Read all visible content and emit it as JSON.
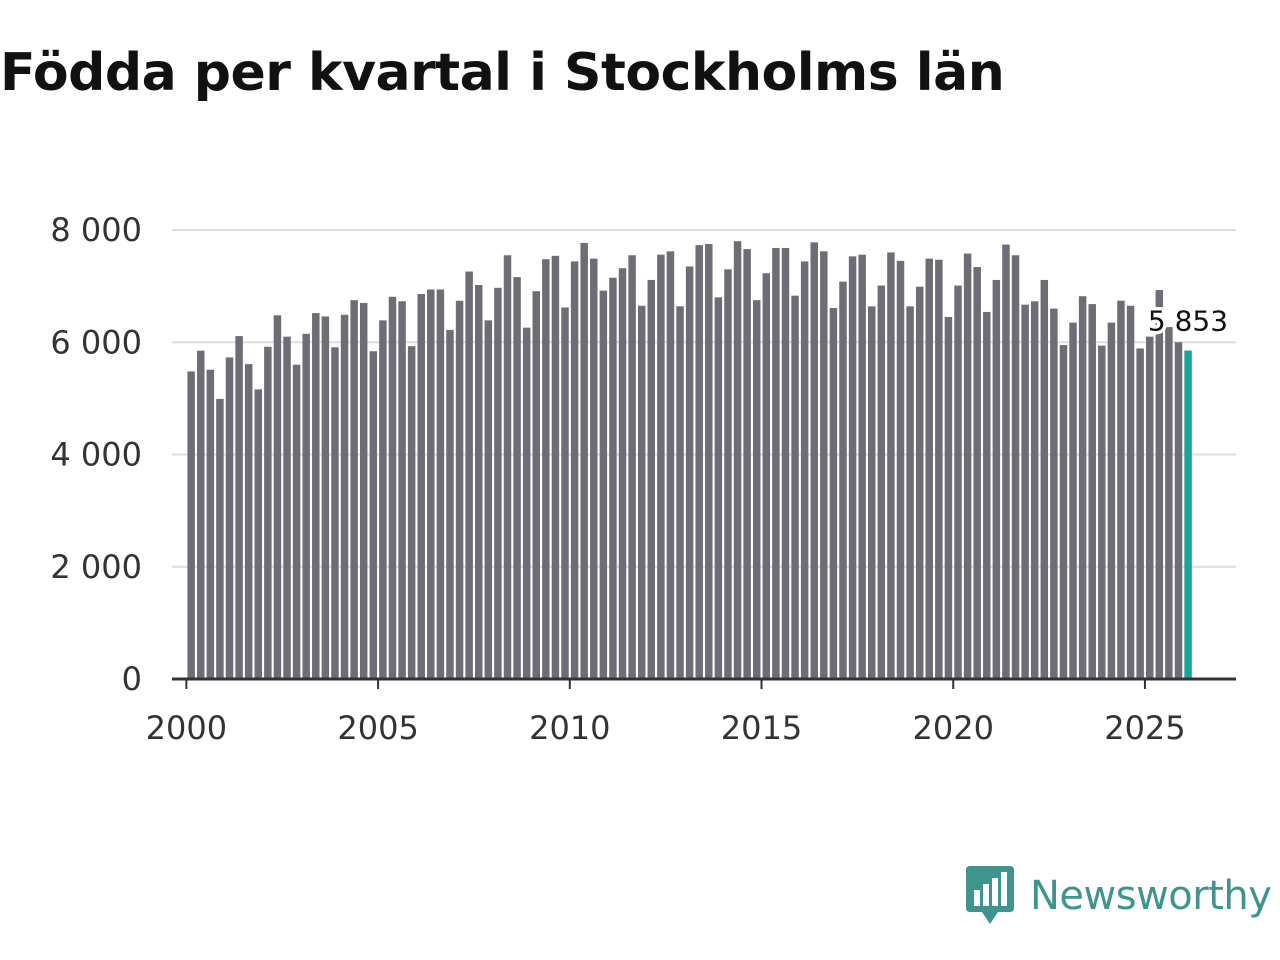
{
  "title": "Födda per kvartal i Stockholms län",
  "brand": {
    "name": "Newsworthy",
    "color": "#3f958e"
  },
  "colors": {
    "bar": "#6d6d75",
    "highlight": "#1aa397",
    "grid": "#dddddd",
    "axis": "#333333"
  },
  "chart_data": {
    "type": "bar",
    "title": "Födda per kvartal i Stockholms län",
    "xlabel": "",
    "ylabel": "",
    "ylim": [
      0,
      8000
    ],
    "y_ticks": [
      0,
      2000,
      4000,
      6000,
      8000
    ],
    "y_tick_labels": [
      "0",
      "2 000",
      "4 000",
      "6 000",
      "8 000"
    ],
    "x_ticks": [
      2000,
      2005,
      2010,
      2015,
      2020,
      2025
    ],
    "x_tick_labels": [
      "2000",
      "2005",
      "2010",
      "2015",
      "2020",
      "2025"
    ],
    "xlim": [
      1999.625,
      2027.375
    ],
    "grid": true,
    "first_quarter": "2000 Q1",
    "last_quarter": "2026 Q1",
    "highlight_label": "5 853",
    "values": [
      5480,
      5850,
      5510,
      4990,
      5730,
      6110,
      5610,
      5160,
      5920,
      6480,
      6100,
      5600,
      6150,
      6520,
      6460,
      5910,
      6490,
      6750,
      6700,
      5840,
      6390,
      6810,
      6730,
      5930,
      6860,
      6940,
      6940,
      6220,
      6740,
      7260,
      7020,
      6390,
      6970,
      7550,
      7160,
      6260,
      6910,
      7480,
      7540,
      6620,
      7440,
      7770,
      7490,
      6920,
      7150,
      7320,
      7550,
      6650,
      7110,
      7560,
      7620,
      6640,
      7350,
      7730,
      7750,
      6800,
      7300,
      7800,
      7660,
      6750,
      7230,
      7680,
      7680,
      6830,
      7440,
      7780,
      7620,
      6610,
      7080,
      7530,
      7560,
      6640,
      7010,
      7600,
      7450,
      6640,
      6990,
      7490,
      7470,
      6450,
      7010,
      7580,
      7340,
      6540,
      7110,
      7740,
      7550,
      6670,
      6730,
      7110,
      6600,
      5950,
      6350,
      6820,
      6680,
      5940,
      6350,
      6740,
      6650,
      5890,
      6100,
      6930,
      6270,
      6000,
      5853
    ]
  }
}
